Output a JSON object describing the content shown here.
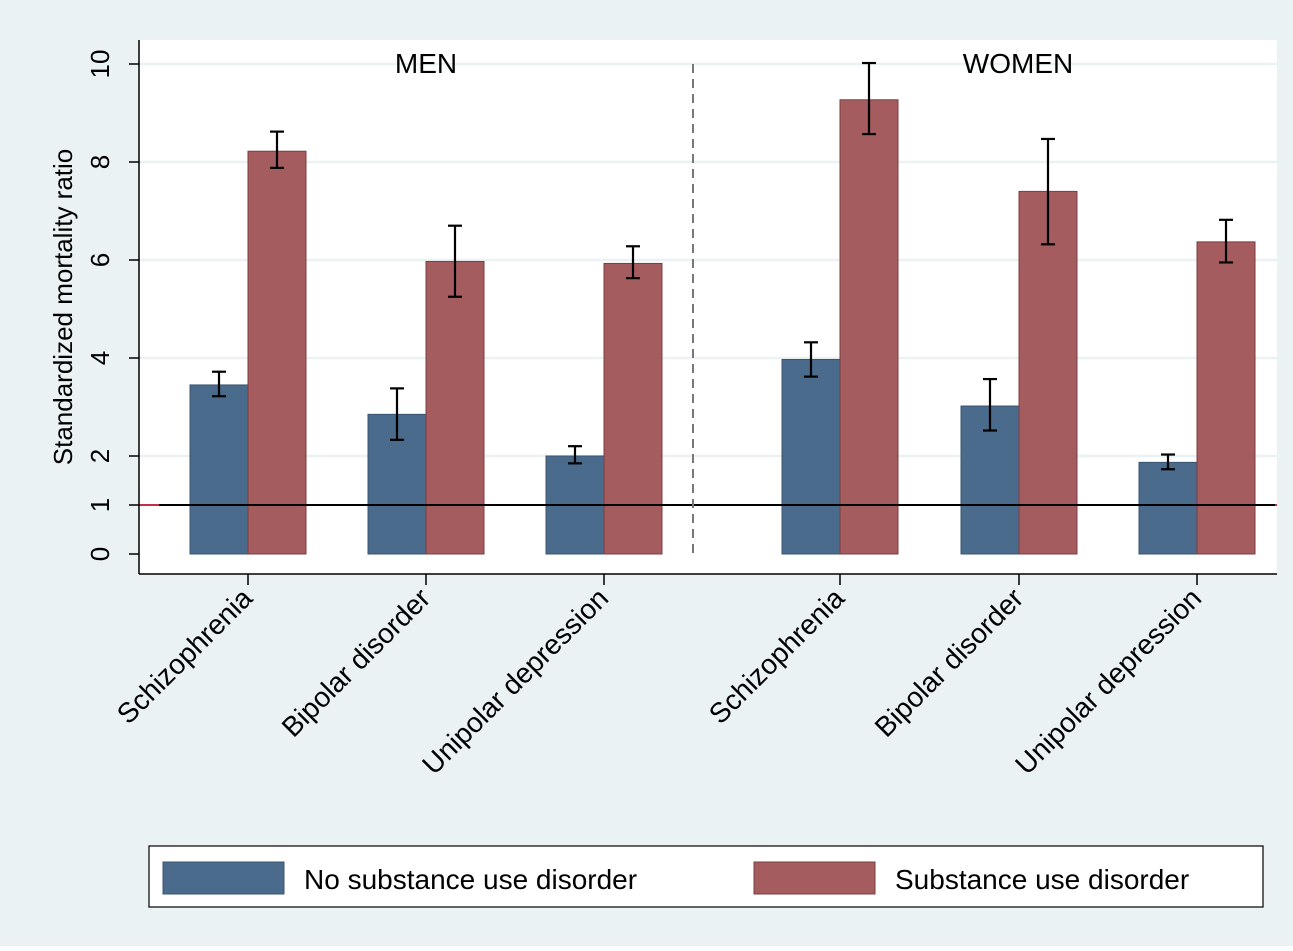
{
  "chart_data": {
    "type": "bar",
    "ylabel": "Standardized mortality ratio",
    "ylim": [
      0,
      10.4
    ],
    "yticks": [
      0,
      1,
      2,
      4,
      6,
      8,
      10
    ],
    "reference_line": 1,
    "grid": true,
    "legend_position": "bottom",
    "colors": {
      "background": "#eaf2f3",
      "plot_background": "#ffffff",
      "grid": "#eaf2f3",
      "No substance use disorder": "#4a6b8c",
      "Substance use disorder": "#a45c5e",
      "reference_line": "#000000",
      "divider": "#777777"
    },
    "panels": [
      {
        "label": "MEN",
        "categories": [
          "Schizophrenia",
          "Bipolar disorder",
          "Unipolar depression"
        ],
        "series": [
          {
            "name": "No substance use disorder",
            "values": [
              3.45,
              2.85,
              2.0
            ],
            "ci_low": [
              3.22,
              2.33,
              1.85
            ],
            "ci_high": [
              3.72,
              3.38,
              2.2
            ]
          },
          {
            "name": "Substance use disorder",
            "values": [
              8.22,
              5.97,
              5.93
            ],
            "ci_low": [
              7.88,
              5.25,
              5.63
            ],
            "ci_high": [
              8.62,
              6.7,
              6.28
            ]
          }
        ]
      },
      {
        "label": "WOMEN",
        "categories": [
          "Schizophrenia",
          "Bipolar disorder",
          "Unipolar depression"
        ],
        "series": [
          {
            "name": "No substance use disorder",
            "values": [
              3.97,
              3.02,
              1.87
            ],
            "ci_low": [
              3.62,
              2.52,
              1.73
            ],
            "ci_high": [
              4.32,
              3.57,
              2.03
            ]
          },
          {
            "name": "Substance use disorder",
            "values": [
              9.27,
              7.4,
              6.37
            ],
            "ci_low": [
              8.57,
              6.32,
              5.95
            ],
            "ci_high": [
              10.02,
              8.47,
              6.82
            ]
          }
        ]
      }
    ]
  }
}
